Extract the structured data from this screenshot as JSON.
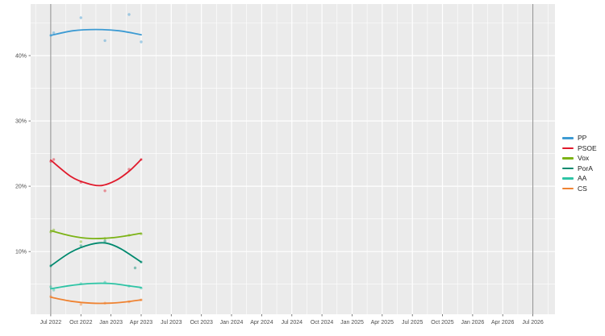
{
  "chart_data": {
    "type": "line",
    "title": "",
    "xlabel": "",
    "ylabel": "",
    "x_unit": "months_since_jul_2022",
    "xlim": [
      -2,
      50.2
    ],
    "ylim": [
      0.4,
      47.9
    ],
    "yticks": [
      10,
      20,
      30,
      40
    ],
    "ytick_labels": [
      "10%",
      "20%",
      "30%",
      "40%"
    ],
    "ytick_minor": [
      5,
      15,
      25,
      35,
      45
    ],
    "xticks": [
      0,
      3,
      6,
      9,
      12,
      15,
      18,
      21,
      24,
      27,
      30,
      33,
      36,
      39,
      42,
      45,
      48
    ],
    "xtick_labels": [
      "Jul 2022",
      "Oct 2022",
      "Jan 2023",
      "Apr 2023",
      "Jul 2023",
      "Oct 2023",
      "Jan 2024",
      "Apr 2024",
      "Jul 2024",
      "Oct 2024",
      "Jan 2025",
      "Apr 2025",
      "Jul 2025",
      "Oct 2025",
      "Jan 2026",
      "Apr 2026",
      "Jul 2026"
    ],
    "vlines": [
      0,
      48
    ],
    "grid": true,
    "legend_position": "right",
    "panel_bg": "#ebebeb",
    "grid_color": "#ffffff",
    "vline_color": "#8c8c8c",
    "axis_text_color": "#4d4d4d",
    "series": [
      {
        "name": "PP",
        "color": "#3d9bd3",
        "points": [
          [
            0,
            43.1
          ],
          [
            0.3,
            43.5
          ],
          [
            3,
            45.8
          ],
          [
            5.4,
            42.3
          ],
          [
            7.8,
            46.3
          ],
          [
            9,
            42.1
          ]
        ],
        "trend": [
          [
            0,
            43.1
          ],
          [
            2.2,
            43.8
          ],
          [
            4.5,
            44.0
          ],
          [
            6.8,
            43.8
          ],
          [
            9,
            43.2
          ]
        ]
      },
      {
        "name": "PSOE",
        "color": "#e01a2c",
        "points": [
          [
            0,
            23.8
          ],
          [
            0.3,
            24.1
          ],
          [
            3,
            20.6
          ],
          [
            5.4,
            19.3
          ],
          [
            7.8,
            22.6
          ],
          [
            9,
            24.1
          ]
        ],
        "trend": [
          [
            0,
            24.0
          ],
          [
            2,
            21.5
          ],
          [
            3.5,
            20.5
          ],
          [
            5,
            20.1
          ],
          [
            6.5,
            20.9
          ],
          [
            7.8,
            22.3
          ],
          [
            9,
            24.1
          ]
        ]
      },
      {
        "name": "Vox",
        "color": "#7cb316",
        "points": [
          [
            0,
            13.0
          ],
          [
            0.3,
            13.3
          ],
          [
            3,
            11.5
          ],
          [
            5.4,
            12.0
          ],
          [
            7.8,
            12.5
          ],
          [
            9,
            12.7
          ]
        ],
        "trend": [
          [
            0,
            13.2
          ],
          [
            2,
            12.4
          ],
          [
            4,
            12.0
          ],
          [
            6,
            12.1
          ],
          [
            7.5,
            12.4
          ],
          [
            9,
            12.8
          ]
        ]
      },
      {
        "name": "PorA",
        "color": "#00896e",
        "points": [
          [
            0,
            7.8
          ],
          [
            3,
            10.9
          ],
          [
            5.4,
            11.6
          ],
          [
            8.4,
            7.5
          ],
          [
            9,
            8.4
          ]
        ],
        "trend": [
          [
            0,
            7.8
          ],
          [
            2,
            9.9
          ],
          [
            4,
            11.1
          ],
          [
            5.5,
            11.3
          ],
          [
            7,
            10.4
          ],
          [
            9,
            8.4
          ]
        ]
      },
      {
        "name": "AA",
        "color": "#2ec4a5",
        "points": [
          [
            0,
            4.6
          ],
          [
            0.3,
            4.1
          ],
          [
            3,
            5.1
          ],
          [
            5.4,
            5.3
          ],
          [
            7.8,
            4.7
          ],
          [
            9,
            4.4
          ]
        ],
        "trend": [
          [
            0,
            4.3
          ],
          [
            2,
            4.8
          ],
          [
            4,
            5.1
          ],
          [
            6,
            5.1
          ],
          [
            7.5,
            4.8
          ],
          [
            9,
            4.5
          ]
        ]
      },
      {
        "name": "CS",
        "color": "#ef8332",
        "points": [
          [
            0,
            3.1
          ],
          [
            3,
            1.9
          ],
          [
            5.4,
            2.1
          ],
          [
            7.8,
            2.3
          ],
          [
            9,
            2.6
          ]
        ],
        "trend": [
          [
            0,
            3.0
          ],
          [
            2,
            2.4
          ],
          [
            4,
            2.1
          ],
          [
            6,
            2.1
          ],
          [
            7.5,
            2.3
          ],
          [
            9,
            2.6
          ]
        ]
      }
    ]
  }
}
